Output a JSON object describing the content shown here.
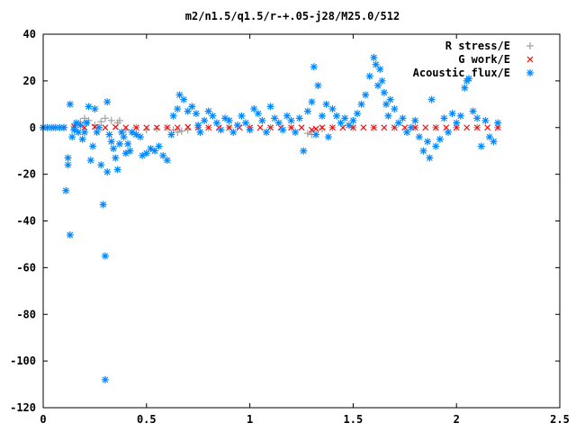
{
  "chart_data": {
    "type": "scatter",
    "title": "m2/n1.5/q1.5/r-+.05-j28/M25.0/512",
    "xlabel": "",
    "ylabel": "",
    "xlim": [
      0,
      2.5
    ],
    "ylim": [
      -120,
      40
    ],
    "xticks": [
      "0",
      "0.5",
      "1",
      "1.5",
      "2",
      "2.5"
    ],
    "yticks": [
      "40",
      "20",
      "0",
      "-20",
      "-40",
      "-60",
      "-80",
      "-100",
      "-120"
    ],
    "legend_position": "top-right",
    "series": [
      {
        "name": "R stress/E",
        "marker": "plus",
        "color": "#a0a0a0",
        "points": [
          [
            0.0,
            0.0
          ],
          [
            0.05,
            0.0
          ],
          [
            0.1,
            0.0
          ],
          [
            0.15,
            0.5
          ],
          [
            0.18,
            2.5
          ],
          [
            0.2,
            4
          ],
          [
            0.22,
            3
          ],
          [
            0.25,
            1
          ],
          [
            0.28,
            2.5
          ],
          [
            0.3,
            4
          ],
          [
            0.33,
            3
          ],
          [
            0.36,
            2
          ],
          [
            0.37,
            3
          ],
          [
            0.4,
            -1
          ],
          [
            0.45,
            0
          ],
          [
            0.5,
            -1
          ],
          [
            0.55,
            -0.5
          ],
          [
            0.6,
            0
          ],
          [
            0.63,
            -1
          ],
          [
            0.65,
            -2
          ],
          [
            0.67,
            -1.5
          ],
          [
            0.7,
            -1
          ],
          [
            0.75,
            0
          ],
          [
            0.8,
            0
          ],
          [
            0.9,
            0
          ],
          [
            1.0,
            0
          ],
          [
            1.1,
            0
          ],
          [
            1.2,
            0
          ],
          [
            1.28,
            -2.5
          ],
          [
            1.3,
            -3
          ],
          [
            1.35,
            -0.5
          ],
          [
            1.4,
            0
          ],
          [
            1.5,
            0
          ],
          [
            1.6,
            0
          ],
          [
            1.7,
            0
          ],
          [
            1.8,
            0
          ],
          [
            1.9,
            0
          ],
          [
            2.0,
            0
          ],
          [
            2.1,
            0
          ],
          [
            2.2,
            0
          ]
        ]
      },
      {
        "name": "G work/E",
        "marker": "cross",
        "color": "#ff0000",
        "points": [
          [
            0.0,
            0
          ],
          [
            0.1,
            0
          ],
          [
            0.15,
            0.5
          ],
          [
            0.2,
            0
          ],
          [
            0.25,
            0.3
          ],
          [
            0.3,
            0
          ],
          [
            0.35,
            0.2
          ],
          [
            0.4,
            0
          ],
          [
            0.45,
            0
          ],
          [
            0.5,
            0
          ],
          [
            0.55,
            0
          ],
          [
            0.6,
            0
          ],
          [
            0.65,
            0
          ],
          [
            0.7,
            0.2
          ],
          [
            0.75,
            0
          ],
          [
            0.8,
            0
          ],
          [
            0.85,
            0
          ],
          [
            0.9,
            0
          ],
          [
            0.95,
            0
          ],
          [
            1.0,
            0
          ],
          [
            1.05,
            0
          ],
          [
            1.1,
            0
          ],
          [
            1.15,
            0
          ],
          [
            1.2,
            0
          ],
          [
            1.25,
            0
          ],
          [
            1.3,
            -1
          ],
          [
            1.32,
            -0.5
          ],
          [
            1.35,
            0
          ],
          [
            1.4,
            0
          ],
          [
            1.45,
            0
          ],
          [
            1.5,
            0
          ],
          [
            1.55,
            0
          ],
          [
            1.6,
            0
          ],
          [
            1.65,
            0
          ],
          [
            1.7,
            0
          ],
          [
            1.75,
            0
          ],
          [
            1.8,
            0
          ],
          [
            1.85,
            0
          ],
          [
            1.9,
            0
          ],
          [
            1.95,
            0
          ],
          [
            2.0,
            0
          ],
          [
            2.05,
            0
          ],
          [
            2.1,
            0
          ],
          [
            2.15,
            0
          ],
          [
            2.2,
            0
          ]
        ]
      },
      {
        "name": "Acoustic flux/E",
        "marker": "star",
        "color": "#0088ff",
        "points": [
          [
            0.0,
            0
          ],
          [
            0.02,
            0
          ],
          [
            0.04,
            0
          ],
          [
            0.06,
            0
          ],
          [
            0.08,
            0
          ],
          [
            0.1,
            0
          ],
          [
            0.11,
            -27
          ],
          [
            0.12,
            -16
          ],
          [
            0.12,
            -13
          ],
          [
            0.13,
            -46
          ],
          [
            0.13,
            10
          ],
          [
            0.14,
            -4
          ],
          [
            0.15,
            -1
          ],
          [
            0.16,
            2
          ],
          [
            0.17,
            -2
          ],
          [
            0.18,
            1
          ],
          [
            0.19,
            -5
          ],
          [
            0.2,
            -2
          ],
          [
            0.21,
            2
          ],
          [
            0.22,
            9
          ],
          [
            0.23,
            -14
          ],
          [
            0.24,
            -8
          ],
          [
            0.25,
            8
          ],
          [
            0.26,
            -2
          ],
          [
            0.27,
            0
          ],
          [
            0.28,
            -16
          ],
          [
            0.29,
            -33
          ],
          [
            0.3,
            -55
          ],
          [
            0.3,
            -108
          ],
          [
            0.31,
            11
          ],
          [
            0.31,
            -19
          ],
          [
            0.32,
            -3
          ],
          [
            0.33,
            -6
          ],
          [
            0.34,
            -9
          ],
          [
            0.35,
            -13
          ],
          [
            0.36,
            -18
          ],
          [
            0.37,
            -7
          ],
          [
            0.38,
            -2
          ],
          [
            0.39,
            -4
          ],
          [
            0.4,
            -11
          ],
          [
            0.41,
            -7
          ],
          [
            0.42,
            -10
          ],
          [
            0.43,
            -2
          ],
          [
            0.45,
            -3
          ],
          [
            0.47,
            -4
          ],
          [
            0.48,
            -12
          ],
          [
            0.5,
            -11
          ],
          [
            0.52,
            -9
          ],
          [
            0.54,
            -10
          ],
          [
            0.56,
            -8
          ],
          [
            0.58,
            -12
          ],
          [
            0.6,
            -14
          ],
          [
            0.62,
            -3
          ],
          [
            0.63,
            5
          ],
          [
            0.65,
            8
          ],
          [
            0.66,
            14
          ],
          [
            0.68,
            12
          ],
          [
            0.7,
            7
          ],
          [
            0.72,
            9
          ],
          [
            0.74,
            6
          ],
          [
            0.75,
            1
          ],
          [
            0.76,
            -2
          ],
          [
            0.78,
            3
          ],
          [
            0.8,
            7
          ],
          [
            0.82,
            5
          ],
          [
            0.84,
            2
          ],
          [
            0.86,
            -1
          ],
          [
            0.88,
            4
          ],
          [
            0.9,
            3
          ],
          [
            0.92,
            -2
          ],
          [
            0.94,
            1
          ],
          [
            0.96,
            5
          ],
          [
            0.98,
            2
          ],
          [
            1.0,
            -1
          ],
          [
            1.02,
            8
          ],
          [
            1.04,
            6
          ],
          [
            1.06,
            3
          ],
          [
            1.08,
            -2
          ],
          [
            1.1,
            9
          ],
          [
            1.12,
            4
          ],
          [
            1.14,
            2
          ],
          [
            1.16,
            -1
          ],
          [
            1.18,
            5
          ],
          [
            1.2,
            3
          ],
          [
            1.22,
            -2
          ],
          [
            1.24,
            4
          ],
          [
            1.26,
            -10
          ],
          [
            1.28,
            7
          ],
          [
            1.3,
            11
          ],
          [
            1.31,
            26
          ],
          [
            1.32,
            -3
          ],
          [
            1.33,
            18
          ],
          [
            1.35,
            5
          ],
          [
            1.37,
            10
          ],
          [
            1.38,
            -4
          ],
          [
            1.4,
            8
          ],
          [
            1.42,
            5
          ],
          [
            1.44,
            2
          ],
          [
            1.46,
            4
          ],
          [
            1.48,
            1
          ],
          [
            1.5,
            3
          ],
          [
            1.52,
            6
          ],
          [
            1.54,
            10
          ],
          [
            1.56,
            14
          ],
          [
            1.58,
            22
          ],
          [
            1.6,
            30
          ],
          [
            1.61,
            27
          ],
          [
            1.62,
            18
          ],
          [
            1.63,
            25
          ],
          [
            1.64,
            20
          ],
          [
            1.65,
            15
          ],
          [
            1.66,
            10
          ],
          [
            1.67,
            5
          ],
          [
            1.68,
            12
          ],
          [
            1.7,
            8
          ],
          [
            1.72,
            2
          ],
          [
            1.74,
            4
          ],
          [
            1.76,
            -2
          ],
          [
            1.78,
            0
          ],
          [
            1.8,
            3
          ],
          [
            1.82,
            -4
          ],
          [
            1.84,
            -10
          ],
          [
            1.86,
            -6
          ],
          [
            1.87,
            -13
          ],
          [
            1.88,
            12
          ],
          [
            1.9,
            -8
          ],
          [
            1.92,
            -5
          ],
          [
            1.94,
            4
          ],
          [
            1.96,
            -2
          ],
          [
            1.98,
            6
          ],
          [
            2.0,
            2
          ],
          [
            2.02,
            5
          ],
          [
            2.04,
            17
          ],
          [
            2.05,
            20
          ],
          [
            2.06,
            21
          ],
          [
            2.08,
            7
          ],
          [
            2.1,
            4
          ],
          [
            2.12,
            -8
          ],
          [
            2.14,
            3
          ],
          [
            2.16,
            -4
          ],
          [
            2.18,
            -6
          ],
          [
            2.2,
            2
          ]
        ]
      }
    ]
  }
}
